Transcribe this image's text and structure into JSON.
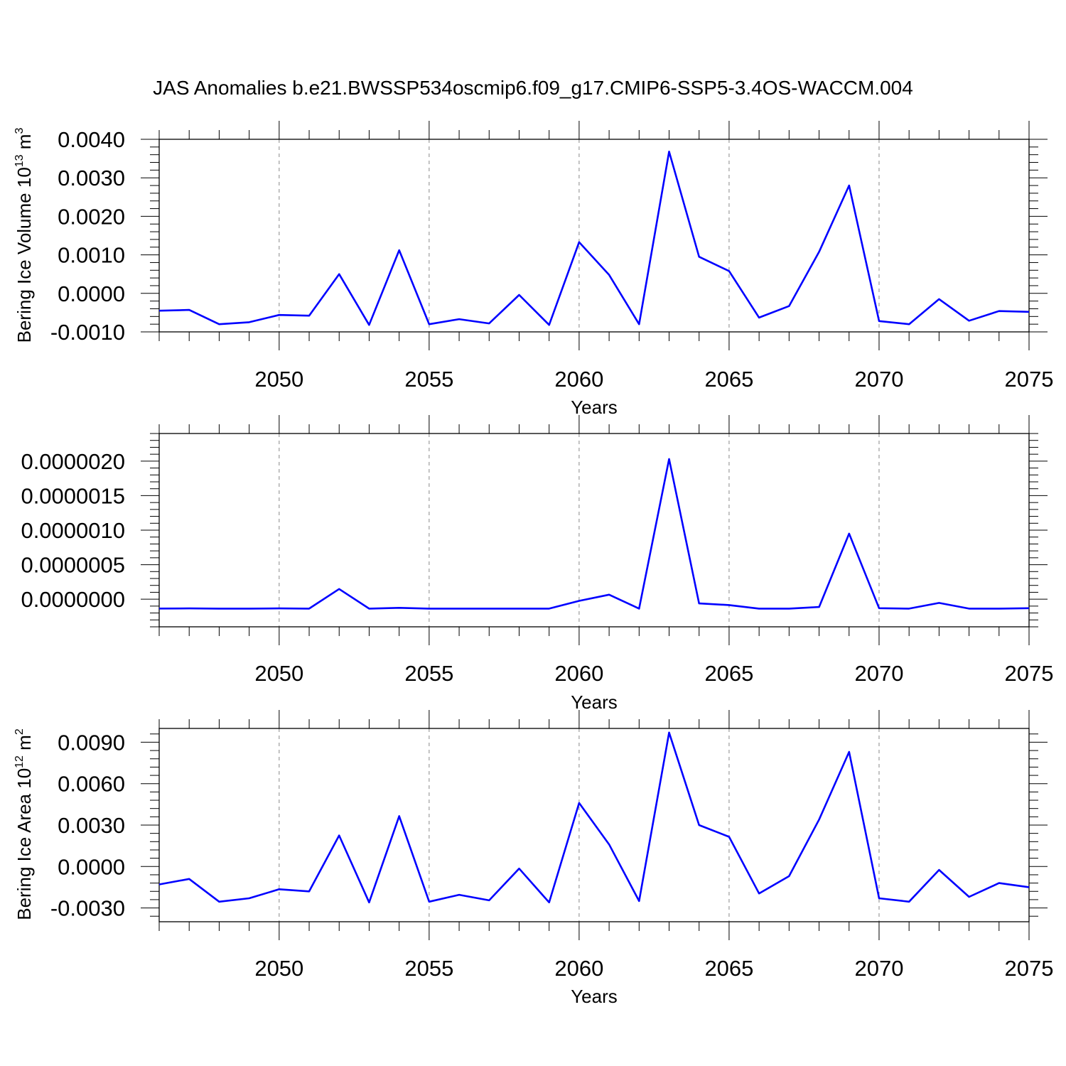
{
  "figure": {
    "title": "JAS Anomalies b.e21.BWSSP534oscmip6.f09_g17.CMIP6-SSP5-3.4OS-WACCM.004",
    "line_color": "#0000ff",
    "grid_color": "#888888"
  },
  "chart_data": [
    {
      "type": "line",
      "title": "",
      "xlabel": "Years",
      "ylabel": "Bering Ice Volume 10",
      "ylabel_exponent": "13",
      "ylabel_unit": " m",
      "ylabel_unit_exponent": "3",
      "xlim": [
        2046,
        2075
      ],
      "ylim": [
        -0.001,
        0.004
      ],
      "x_ticks": [
        "2050",
        "2055",
        "2060",
        "2065",
        "2070",
        "2075"
      ],
      "y_ticks": [
        "-0.0010",
        "0.0000",
        "0.0010",
        "0.0020",
        "0.0030",
        "0.0040"
      ],
      "grid": "vertical dashed at major x ticks",
      "x": [
        2046,
        2047,
        2048,
        2049,
        2050,
        2051,
        2052,
        2053,
        2054,
        2055,
        2056,
        2057,
        2058,
        2059,
        2060,
        2061,
        2062,
        2063,
        2064,
        2065,
        2066,
        2067,
        2068,
        2069,
        2070,
        2071,
        2072,
        2073,
        2074,
        2075
      ],
      "values": [
        -0.00045,
        -0.00043,
        -0.0008,
        -0.00075,
        -0.00056,
        -0.00058,
        0.0005,
        -0.00082,
        0.00112,
        -0.0008,
        -0.00067,
        -0.00078,
        -4e-05,
        -0.00082,
        0.00133,
        0.00048,
        -0.0008,
        0.00368,
        0.00095,
        0.00058,
        -0.00063,
        -0.00033,
        0.00108,
        0.0028,
        -0.00072,
        -0.0008,
        -0.00015,
        -0.00071,
        -0.00046,
        -0.00048
      ]
    },
    {
      "type": "line",
      "title": "",
      "xlabel": "Years",
      "ylabel": "",
      "xlim": [
        2046,
        2075
      ],
      "ylim": [
        -4e-07,
        2.4e-06
      ],
      "x_ticks": [
        "2050",
        "2055",
        "2060",
        "2065",
        "2070",
        "2075"
      ],
      "y_ticks": [
        "0.0000000",
        "0.0000005",
        "0.0000010",
        "0.0000015",
        "0.0000020"
      ],
      "grid": "vertical dashed at major x ticks",
      "x": [
        2046,
        2047,
        2048,
        2049,
        2050,
        2051,
        2052,
        2053,
        2054,
        2055,
        2056,
        2057,
        2058,
        2059,
        2060,
        2061,
        2062,
        2063,
        2064,
        2065,
        2066,
        2067,
        2068,
        2069,
        2070,
        2071,
        2072,
        2073,
        2074,
        2075
      ],
      "values": [
        -1.35e-07,
        -1.33e-07,
        -1.36e-07,
        -1.36e-07,
        -1.33e-07,
        -1.36e-07,
        1.48e-07,
        -1.36e-07,
        -1.25e-07,
        -1.36e-07,
        -1.36e-07,
        -1.36e-07,
        -1.36e-07,
        -1.36e-07,
        -2.4e-08,
        6.5e-08,
        -1.36e-07,
        2.03e-06,
        -6.1e-08,
        -8.5e-08,
        -1.36e-07,
        -1.36e-07,
        -1.13e-07,
        9.5e-07,
        -1.3e-07,
        -1.36e-07,
        -5.4e-08,
        -1.36e-07,
        -1.36e-07,
        -1.3e-07
      ]
    },
    {
      "type": "line",
      "title": "",
      "xlabel": "Years",
      "ylabel": "Bering Ice Area 10",
      "ylabel_exponent": "12",
      "ylabel_unit": " m",
      "ylabel_unit_exponent": "2",
      "xlim": [
        2046,
        2075
      ],
      "ylim": [
        -0.004,
        0.01
      ],
      "x_ticks": [
        "2050",
        "2055",
        "2060",
        "2065",
        "2070",
        "2075"
      ],
      "y_ticks": [
        "-0.0030",
        "0.0000",
        "0.0030",
        "0.0060",
        "0.0090"
      ],
      "grid": "vertical dashed at major x ticks",
      "x": [
        2046,
        2047,
        2048,
        2049,
        2050,
        2051,
        2052,
        2053,
        2054,
        2055,
        2056,
        2057,
        2058,
        2059,
        2060,
        2061,
        2062,
        2063,
        2064,
        2065,
        2066,
        2067,
        2068,
        2069,
        2070,
        2071,
        2072,
        2073,
        2074,
        2075
      ],
      "values": [
        -0.0013,
        -0.0009,
        -0.00255,
        -0.0023,
        -0.00165,
        -0.0018,
        0.00225,
        -0.0026,
        0.00365,
        -0.00255,
        -0.00205,
        -0.00245,
        -0.00015,
        -0.0026,
        0.0046,
        0.0016,
        -0.0025,
        0.0097,
        0.003,
        0.00215,
        -0.00195,
        -0.0007,
        0.0034,
        0.0083,
        -0.0023,
        -0.00255,
        -0.00025,
        -0.0022,
        -0.0012,
        -0.0015
      ]
    }
  ]
}
